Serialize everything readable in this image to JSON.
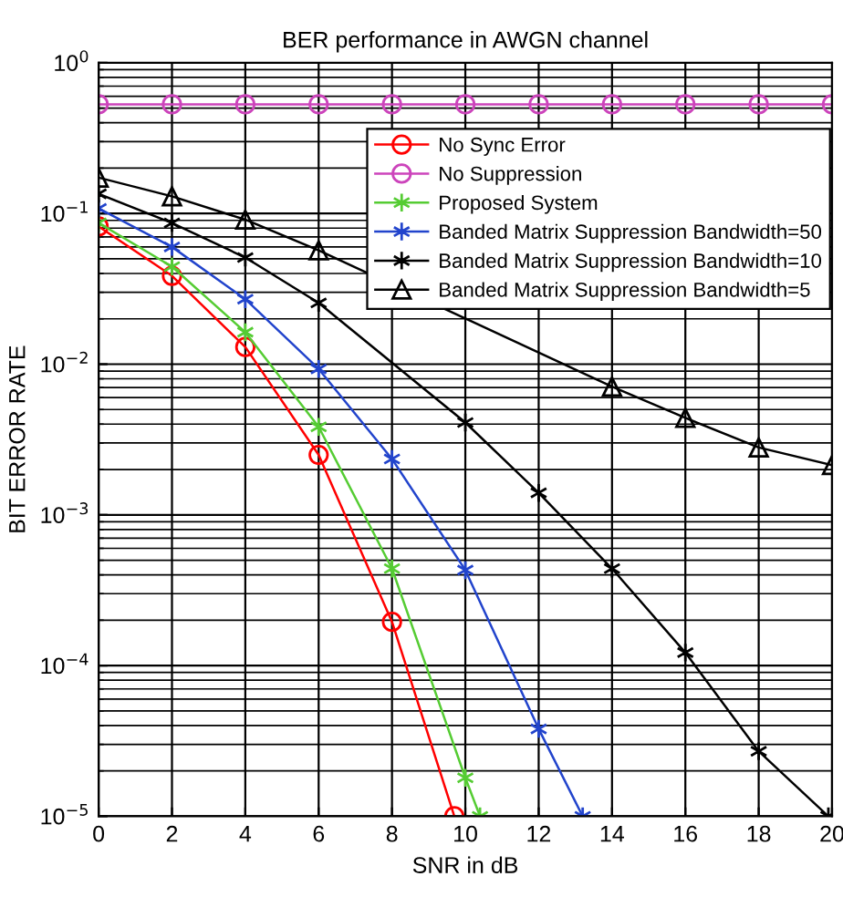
{
  "chart_data": {
    "type": "line",
    "title": "BER performance in AWGN channel",
    "xlabel": "SNR in dB",
    "ylabel": "BIT ERROR RATE",
    "log": "y",
    "grid": true,
    "legend": "top right",
    "line_style": "solid",
    "x": [
      0,
      2,
      4,
      6,
      8,
      10,
      12,
      14,
      16,
      18,
      20
    ],
    "xlim": [
      0,
      20
    ],
    "xticks": [
      0,
      2,
      4,
      6,
      8,
      10,
      12,
      14,
      16,
      18,
      20
    ],
    "ylim": [
      1e-05,
      1
    ],
    "yticks": [
      {
        "value": 1e-05,
        "label": "10$^{−5}$"
      },
      {
        "value": 0.0001,
        "label": "10$^{−4}$"
      },
      {
        "value": 0.001,
        "label": "10$^{−3}$"
      },
      {
        "value": 0.01,
        "label": "10$^{−2}$"
      },
      {
        "value": 0.1,
        "label": "10$^{−1}$"
      },
      {
        "value": 1,
        "label": "10$^{0}$"
      }
    ],
    "series": [
      {
        "name": "No Sync Error",
        "color": "#ff0000",
        "marker": "circle",
        "x": [
          0,
          2,
          4,
          6,
          8,
          9.7
        ],
        "values": [
          0.082,
          0.0386,
          0.013,
          0.0025,
          0.000195,
          1e-05
        ]
      },
      {
        "name": "No Suppression",
        "color": "#cc44bb",
        "marker": "circle",
        "values": [
          0.53,
          0.53,
          0.53,
          0.53,
          0.53,
          0.53,
          0.53,
          0.53,
          0.53,
          0.53,
          0.53
        ]
      },
      {
        "name": "Proposed System",
        "color": "#55cc33",
        "marker": "cross",
        "x": [
          0,
          2,
          4,
          6,
          8,
          10,
          10.4
        ],
        "values": [
          0.0865,
          0.0444,
          0.0163,
          0.00384,
          0.00044,
          1.8e-05,
          1e-05
        ]
      },
      {
        "name": "Banded Matrix Suppression Bandwidth=50",
        "color": "#2244cc",
        "marker": "cross",
        "x": [
          0,
          2,
          4,
          6,
          8,
          10,
          12,
          13.2
        ],
        "values": [
          0.108,
          0.06,
          0.027,
          0.0093,
          0.00235,
          0.00043,
          3.8e-05,
          1e-05
        ]
      },
      {
        "name": "Banded Matrix Suppression Bandwidth=10",
        "color": "#000000",
        "marker": "cross",
        "x": [
          0,
          2,
          4,
          6,
          8,
          10,
          12,
          14,
          16,
          18,
          19.9
        ],
        "values": [
          0.135,
          0.0865,
          0.051,
          0.0255,
          null,
          0.0041,
          0.0014,
          0.00044,
          0.000122,
          2.7e-05,
          1e-05
        ]
      },
      {
        "name": "Banded Matrix Suppression Bandwidth=5",
        "color": "#000000",
        "marker": "triangle",
        "values": [
          0.173,
          0.13,
          0.091,
          0.057,
          null,
          null,
          null,
          0.0071,
          0.0044,
          0.0028,
          0.00214
        ]
      }
    ]
  }
}
